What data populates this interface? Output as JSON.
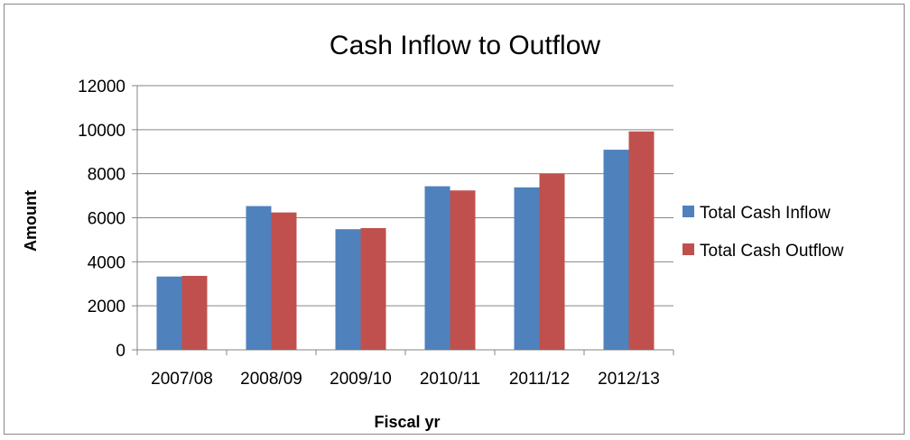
{
  "chart_data": {
    "type": "bar",
    "title": "Cash Inflow to Outflow",
    "xlabel": "Fiscal yr",
    "ylabel": "Amount",
    "categories": [
      "2007/08",
      "2008/09",
      "2009/10",
      "2010/11",
      "2011/12",
      "2012/13"
    ],
    "series": [
      {
        "name": "Total Cash Inflow",
        "color": "#4f81bd",
        "values": [
          3330,
          6530,
          5480,
          7430,
          7380,
          9090
        ]
      },
      {
        "name": "Total Cash Outflow",
        "color": "#c0504d",
        "values": [
          3360,
          6240,
          5530,
          7240,
          8000,
          9920
        ]
      }
    ],
    "ylim": [
      0,
      12000
    ],
    "yticks": [
      0,
      2000,
      4000,
      6000,
      8000,
      10000,
      12000
    ],
    "grid": true,
    "legend": "right"
  }
}
